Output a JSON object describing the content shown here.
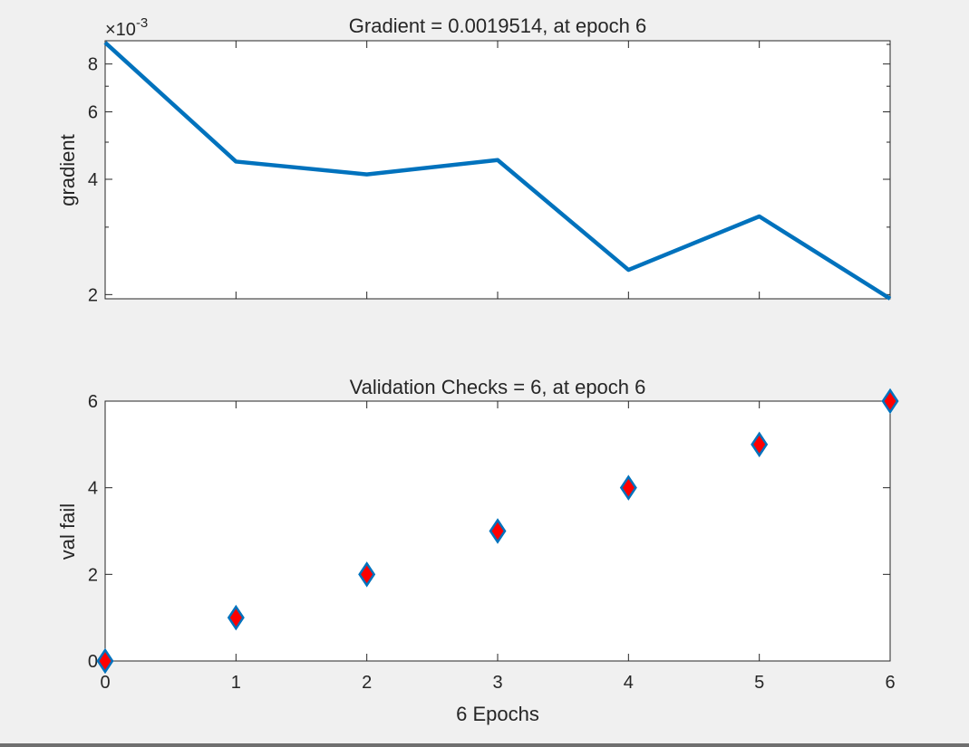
{
  "chart_data": [
    {
      "type": "line",
      "title": "Gradient = 0.0019514, at epoch 6",
      "xlabel": "",
      "ylabel": "gradient",
      "yscale": "log",
      "y_exponent_label": "×10",
      "y_exponent_power": "-3",
      "x": [
        0,
        1,
        2,
        3,
        4,
        5,
        6
      ],
      "series": [
        {
          "values": [
            0.0091,
            0.00445,
            0.00412,
            0.00449,
            0.00232,
            0.0032,
            0.0019514
          ]
        }
      ],
      "xlim": [
        0,
        6
      ],
      "ylim": [
        0.00195,
        0.0092
      ],
      "x_ticks": [
        0,
        1,
        2,
        3,
        4,
        5,
        6
      ],
      "y_ticks": [
        0.002,
        0.004,
        0.006,
        0.008
      ],
      "y_tick_labels": [
        "2",
        "4",
        "6",
        "8"
      ],
      "y_minor_ticks": [
        0.003,
        0.005,
        0.007,
        0.009
      ],
      "grid": false,
      "line_color": "#0072bd"
    },
    {
      "type": "scatter",
      "title": "Validation Checks = 6, at epoch 6",
      "xlabel": "6 Epochs",
      "ylabel": "val fail",
      "x": [
        0,
        1,
        2,
        3,
        4,
        5,
        6
      ],
      "series": [
        {
          "values": [
            0,
            1,
            2,
            3,
            4,
            5,
            6
          ]
        }
      ],
      "xlim": [
        0,
        6
      ],
      "ylim": [
        0,
        6
      ],
      "x_ticks": [
        0,
        1,
        2,
        3,
        4,
        5,
        6
      ],
      "x_tick_labels": [
        "0",
        "1",
        "2",
        "3",
        "4",
        "5",
        "6"
      ],
      "y_ticks": [
        0,
        2,
        4,
        6
      ],
      "y_tick_labels": [
        "0",
        "2",
        "4",
        "6"
      ],
      "grid": false,
      "marker": "diamond",
      "marker_edge_color": "#0072bd",
      "marker_face_color": "#ff0000"
    }
  ]
}
